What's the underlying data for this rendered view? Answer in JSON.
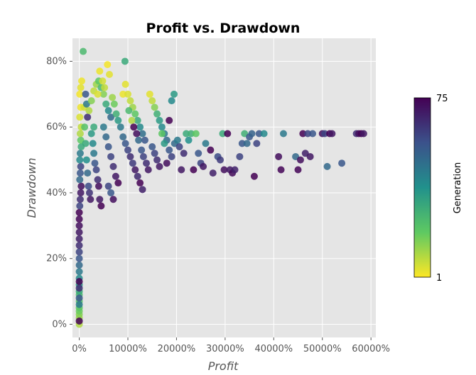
{
  "chart_data": {
    "type": "scatter",
    "title": "Profit vs. Drawdown",
    "xlabel": "Profit",
    "ylabel": "Drawdown",
    "xlim": [
      -140,
      6100
    ],
    "ylim": [
      -4,
      87
    ],
    "x_ticks": [
      0,
      1000,
      2000,
      3000,
      4000,
      5000,
      6000
    ],
    "x_tick_labels": [
      "0%",
      "10000%",
      "20000%",
      "30000%",
      "40000%",
      "50000%",
      "60000%"
    ],
    "y_ticks": [
      0,
      20,
      40,
      60,
      80
    ],
    "y_tick_labels": [
      "0%",
      "20%",
      "40%",
      "60%",
      "80%"
    ],
    "grid": true,
    "plot_background": "#e5e5e5",
    "grid_color": "#ffffff",
    "colorbar": {
      "label": "Generation",
      "min": 1,
      "max": 75,
      "min_label": "1",
      "max_label": "75",
      "colormap": [
        "#fde725",
        "#5ec962",
        "#21918c",
        "#3b528b",
        "#440154"
      ]
    },
    "marker_alpha": 0.85,
    "series": [
      {
        "points": [
          [
            0,
            0,
            10
          ],
          [
            0,
            2,
            12
          ],
          [
            0,
            3,
            15
          ],
          [
            0,
            4,
            18
          ],
          [
            0,
            5,
            20
          ],
          [
            0,
            7,
            22
          ],
          [
            0,
            9,
            25
          ],
          [
            0,
            10,
            30
          ],
          [
            0,
            12,
            35
          ],
          [
            0,
            14,
            40
          ],
          [
            0,
            16,
            45
          ],
          [
            0,
            18,
            50
          ],
          [
            0,
            20,
            55
          ],
          [
            0,
            22,
            60
          ],
          [
            0,
            24,
            65
          ],
          [
            0,
            26,
            68
          ],
          [
            0,
            28,
            70
          ],
          [
            0,
            30,
            72
          ],
          [
            0,
            32,
            74
          ],
          [
            0,
            34,
            75
          ],
          [
            10,
            36,
            60
          ],
          [
            20,
            38,
            65
          ],
          [
            30,
            40,
            70
          ],
          [
            40,
            42,
            72
          ],
          [
            10,
            44,
            50
          ],
          [
            20,
            46,
            55
          ],
          [
            30,
            48,
            60
          ],
          [
            10,
            50,
            40
          ],
          [
            20,
            52,
            45
          ],
          [
            40,
            54,
            30
          ],
          [
            30,
            56,
            20
          ],
          [
            20,
            58,
            10
          ],
          [
            40,
            60,
            8
          ],
          [
            10,
            63,
            5
          ],
          [
            30,
            66,
            3
          ],
          [
            10,
            70,
            2
          ],
          [
            30,
            72,
            4
          ],
          [
            50,
            74,
            3
          ],
          [
            80,
            83,
            25
          ],
          [
            100,
            66,
            6
          ],
          [
            110,
            60,
            22
          ],
          [
            130,
            55,
            30
          ],
          [
            150,
            50,
            38
          ],
          [
            170,
            46,
            50
          ],
          [
            190,
            42,
            58
          ],
          [
            210,
            40,
            64
          ],
          [
            230,
            38,
            70
          ],
          [
            130,
            70,
            55
          ],
          [
            150,
            67,
            45
          ],
          [
            170,
            63,
            65
          ],
          [
            250,
            58,
            35
          ],
          [
            280,
            55,
            40
          ],
          [
            300,
            52,
            45
          ],
          [
            320,
            49,
            55
          ],
          [
            350,
            47,
            60
          ],
          [
            380,
            44,
            65
          ],
          [
            400,
            42,
            72
          ],
          [
            420,
            38,
            70
          ],
          [
            450,
            36,
            75
          ],
          [
            300,
            60,
            30
          ],
          [
            200,
            65,
            10
          ],
          [
            250,
            68,
            15
          ],
          [
            300,
            71,
            8
          ],
          [
            350,
            73,
            12
          ],
          [
            400,
            74,
            20
          ],
          [
            450,
            72,
            25
          ],
          [
            500,
            70,
            15
          ],
          [
            550,
            67,
            30
          ],
          [
            600,
            65,
            40
          ],
          [
            650,
            63,
            50
          ],
          [
            500,
            60,
            45
          ],
          [
            550,
            57,
            50
          ],
          [
            600,
            54,
            55
          ],
          [
            650,
            51,
            60
          ],
          [
            700,
            48,
            65
          ],
          [
            750,
            45,
            70
          ],
          [
            800,
            43,
            75
          ],
          [
            600,
            42,
            60
          ],
          [
            650,
            40,
            55
          ],
          [
            700,
            38,
            72
          ],
          [
            380,
            70,
            5
          ],
          [
            420,
            77,
            3
          ],
          [
            480,
            74,
            6
          ],
          [
            520,
            72,
            8
          ],
          [
            580,
            79,
            2
          ],
          [
            620,
            76,
            4
          ],
          [
            680,
            69,
            12
          ],
          [
            720,
            67,
            18
          ],
          [
            760,
            64,
            28
          ],
          [
            800,
            62,
            35
          ],
          [
            850,
            60,
            45
          ],
          [
            900,
            57,
            50
          ],
          [
            950,
            55,
            55
          ],
          [
            1000,
            53,
            60
          ],
          [
            1050,
            51,
            65
          ],
          [
            1100,
            49,
            62
          ],
          [
            1150,
            47,
            70
          ],
          [
            1200,
            45,
            66
          ],
          [
            1250,
            43,
            75
          ],
          [
            1300,
            41,
            68
          ],
          [
            900,
            70,
            3
          ],
          [
            950,
            73,
            4
          ],
          [
            1000,
            70,
            5
          ],
          [
            1050,
            68,
            8
          ],
          [
            1100,
            66,
            12
          ],
          [
            1150,
            64,
            20
          ],
          [
            1200,
            62,
            30
          ],
          [
            1250,
            60,
            40
          ],
          [
            1300,
            58,
            48
          ],
          [
            1350,
            56,
            55
          ],
          [
            940,
            80,
            30
          ],
          [
            1020,
            65,
            25
          ],
          [
            1080,
            62,
            10
          ],
          [
            1120,
            60,
            75
          ],
          [
            1180,
            58,
            72
          ],
          [
            1220,
            56,
            50
          ],
          [
            1280,
            53,
            55
          ],
          [
            1320,
            51,
            60
          ],
          [
            1380,
            49,
            65
          ],
          [
            1420,
            47,
            70
          ],
          [
            1450,
            70,
            4
          ],
          [
            1500,
            68,
            8
          ],
          [
            1550,
            66,
            15
          ],
          [
            1600,
            64,
            28
          ],
          [
            1650,
            62,
            35
          ],
          [
            1700,
            60,
            40
          ],
          [
            1750,
            58,
            45
          ],
          [
            1800,
            56,
            50
          ],
          [
            1850,
            53,
            55
          ],
          [
            1900,
            51,
            60
          ],
          [
            1500,
            54,
            55
          ],
          [
            1550,
            52,
            60
          ],
          [
            1600,
            50,
            65
          ],
          [
            1650,
            48,
            70
          ],
          [
            1700,
            58,
            20
          ],
          [
            1750,
            55,
            35
          ],
          [
            1800,
            49,
            72
          ],
          [
            1850,
            62,
            75
          ],
          [
            1900,
            68,
            40
          ],
          [
            1950,
            70,
            35
          ],
          [
            1960,
            55,
            50
          ],
          [
            2020,
            56,
            45
          ],
          [
            2060,
            54,
            60
          ],
          [
            2100,
            47,
            70
          ],
          [
            2150,
            52,
            65
          ],
          [
            2200,
            58,
            30
          ],
          [
            2250,
            56,
            38
          ],
          [
            2300,
            58,
            28
          ],
          [
            2350,
            47,
            75
          ],
          [
            2400,
            58,
            20
          ],
          [
            2450,
            52,
            55
          ],
          [
            2500,
            49,
            60
          ],
          [
            2550,
            48,
            70
          ],
          [
            2600,
            55,
            45
          ],
          [
            2700,
            53,
            75
          ],
          [
            2750,
            46,
            68
          ],
          [
            2850,
            51,
            58
          ],
          [
            2900,
            50,
            62
          ],
          [
            2950,
            58,
            30
          ],
          [
            2980,
            47,
            72
          ],
          [
            3050,
            58,
            75
          ],
          [
            3100,
            47,
            70
          ],
          [
            3150,
            46,
            73
          ],
          [
            3200,
            47,
            68
          ],
          [
            3300,
            51,
            60
          ],
          [
            3350,
            55,
            55
          ],
          [
            3400,
            58,
            28
          ],
          [
            3450,
            55,
            50
          ],
          [
            3500,
            57,
            55
          ],
          [
            3550,
            58,
            52
          ],
          [
            3600,
            45,
            75
          ],
          [
            3650,
            55,
            60
          ],
          [
            3700,
            58,
            55
          ],
          [
            3800,
            58,
            40
          ],
          [
            4100,
            51,
            72
          ],
          [
            4150,
            47,
            74
          ],
          [
            4200,
            58,
            45
          ],
          [
            4450,
            51,
            50
          ],
          [
            4500,
            47,
            74
          ],
          [
            4550,
            50,
            72
          ],
          [
            4600,
            58,
            75
          ],
          [
            4650,
            52,
            68
          ],
          [
            4700,
            58,
            60
          ],
          [
            4750,
            51,
            70
          ],
          [
            4800,
            58,
            55
          ],
          [
            5000,
            58,
            72
          ],
          [
            5050,
            58,
            60
          ],
          [
            5100,
            48,
            50
          ],
          [
            5150,
            58,
            75
          ],
          [
            5200,
            58,
            70
          ],
          [
            5400,
            49,
            55
          ],
          [
            5700,
            58,
            65
          ],
          [
            5750,
            58,
            72
          ],
          [
            5800,
            58,
            75
          ],
          [
            5850,
            58,
            70
          ],
          [
            0,
            13,
            75
          ],
          [
            0,
            11,
            65
          ],
          [
            0,
            8,
            55
          ],
          [
            0,
            6,
            45
          ],
          [
            0,
            1,
            75
          ]
        ]
      }
    ]
  }
}
